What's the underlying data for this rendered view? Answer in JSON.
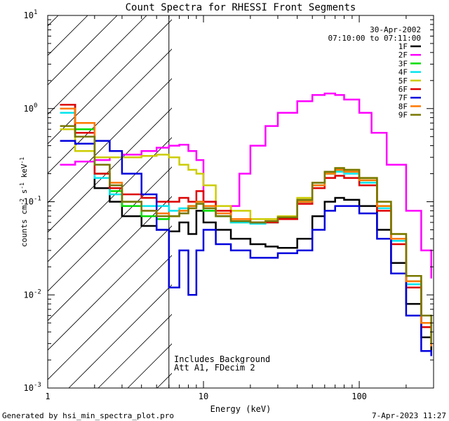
{
  "chart_data": {
    "type": "line",
    "title": "Count Spectra for RHESSI Front Segments",
    "date": "30-Apr-2002",
    "time_range": "07:10:00 to 07:11:00",
    "xlabel": "Energy (keV)",
    "ylabel_parts": [
      "counts cm",
      "-2",
      " s",
      "-1",
      " keV",
      "-1"
    ],
    "xscale": "log",
    "yscale": "log",
    "xlim": [
      1,
      300
    ],
    "ylim": [
      0.001,
      10
    ],
    "x_tick_labels": [
      "1",
      "10",
      "100"
    ],
    "x_tick_values": [
      1,
      10,
      100
    ],
    "y_tick_mantissa": [
      "10",
      "10",
      "10",
      "10",
      "10"
    ],
    "y_tick_exponents": [
      "-3",
      "-2",
      "-1",
      "0",
      "1"
    ],
    "y_tick_values": [
      0.001,
      0.01,
      0.1,
      1,
      10
    ],
    "hatched_region_keV": [
      1,
      6
    ],
    "annotations": [
      "Includes Background",
      "Att A1, FDecim 2"
    ],
    "footer_left": "Generated by hsi_min_spectra_plot.pro",
    "footer_right": "7-Apr-2023 11:27",
    "legend_position": "top-right",
    "series": [
      {
        "name": "1F",
        "color": "#000000",
        "x": [
          1.2,
          1.5,
          2,
          2.5,
          3,
          4,
          5,
          6,
          7,
          8,
          9,
          10,
          12,
          15,
          20,
          25,
          30,
          40,
          50,
          60,
          70,
          80,
          100,
          130,
          160,
          200,
          250,
          290
        ],
        "y": [
          1.1,
          0.5,
          0.14,
          0.1,
          0.07,
          0.055,
          0.05,
          0.048,
          0.06,
          0.045,
          0.08,
          0.06,
          0.05,
          0.04,
          0.035,
          0.033,
          0.032,
          0.04,
          0.07,
          0.1,
          0.11,
          0.105,
          0.09,
          0.05,
          0.022,
          0.008,
          0.0035,
          0.0025
        ]
      },
      {
        "name": "2F",
        "color": "#ff00ff",
        "x": [
          1.2,
          1.5,
          2,
          2.5,
          3,
          4,
          5,
          6,
          7,
          8,
          9,
          10,
          12,
          15,
          17,
          20,
          25,
          30,
          40,
          50,
          60,
          70,
          80,
          100,
          120,
          150,
          200,
          250,
          290
        ],
        "y": [
          0.25,
          0.27,
          0.28,
          0.3,
          0.32,
          0.35,
          0.38,
          0.4,
          0.41,
          0.35,
          0.28,
          0.1,
          0.07,
          0.09,
          0.2,
          0.4,
          0.65,
          0.9,
          1.2,
          1.4,
          1.45,
          1.4,
          1.25,
          0.9,
          0.55,
          0.25,
          0.08,
          0.03,
          0.015
        ]
      },
      {
        "name": "3F",
        "color": "#00dd00",
        "x": [
          1.2,
          1.5,
          2,
          2.5,
          3,
          4,
          5,
          6,
          7,
          8,
          9,
          10,
          12,
          15,
          20,
          25,
          30,
          40,
          50,
          60,
          70,
          80,
          100,
          130,
          160,
          200,
          250,
          290
        ],
        "y": [
          1.0,
          0.6,
          0.2,
          0.13,
          0.09,
          0.07,
          0.065,
          0.07,
          0.08,
          0.09,
          0.1,
          0.08,
          0.07,
          0.06,
          0.06,
          0.06,
          0.065,
          0.1,
          0.15,
          0.2,
          0.22,
          0.21,
          0.17,
          0.09,
          0.04,
          0.014,
          0.005,
          0.003
        ]
      },
      {
        "name": "4F",
        "color": "#00e5ee",
        "x": [
          1.2,
          1.5,
          2,
          2.5,
          3,
          4,
          5,
          6,
          7,
          8,
          9,
          10,
          12,
          15,
          20,
          25,
          30,
          40,
          50,
          60,
          70,
          80,
          100,
          130,
          160,
          200,
          250,
          290
        ],
        "y": [
          0.9,
          0.5,
          0.18,
          0.12,
          0.1,
          0.09,
          0.09,
          0.08,
          0.085,
          0.09,
          0.1,
          0.085,
          0.07,
          0.06,
          0.058,
          0.06,
          0.065,
          0.1,
          0.15,
          0.2,
          0.21,
          0.2,
          0.16,
          0.085,
          0.038,
          0.013,
          0.005,
          0.003
        ]
      },
      {
        "name": "5F",
        "color": "#cccc00",
        "x": [
          1.2,
          1.5,
          2,
          2.5,
          3,
          4,
          5,
          6,
          7,
          8,
          9,
          10,
          12,
          15,
          20,
          25,
          30,
          40,
          50,
          60,
          70,
          80,
          100,
          130,
          160,
          200,
          250,
          290
        ],
        "y": [
          0.6,
          0.35,
          0.3,
          0.3,
          0.3,
          0.31,
          0.32,
          0.3,
          0.25,
          0.22,
          0.2,
          0.15,
          0.09,
          0.08,
          0.065,
          0.065,
          0.07,
          0.11,
          0.16,
          0.21,
          0.23,
          0.22,
          0.18,
          0.1,
          0.045,
          0.016,
          0.006,
          0.0035
        ]
      },
      {
        "name": "6F",
        "color": "#dd0000",
        "x": [
          1.2,
          1.5,
          2,
          2.5,
          3,
          4,
          5,
          6,
          7,
          8,
          9,
          10,
          12,
          15,
          20,
          25,
          30,
          40,
          50,
          60,
          70,
          80,
          100,
          130,
          160,
          200,
          250,
          290
        ],
        "y": [
          1.1,
          0.55,
          0.2,
          0.14,
          0.12,
          0.11,
          0.1,
          0.1,
          0.11,
          0.1,
          0.13,
          0.1,
          0.08,
          0.065,
          0.06,
          0.06,
          0.065,
          0.095,
          0.14,
          0.18,
          0.19,
          0.18,
          0.15,
          0.08,
          0.035,
          0.012,
          0.0045,
          0.003
        ]
      },
      {
        "name": "7F",
        "color": "#0000dd",
        "x": [
          1.2,
          1.5,
          2,
          2.5,
          3,
          4,
          5,
          6,
          7,
          8,
          9,
          10,
          12,
          15,
          20,
          25,
          30,
          40,
          50,
          60,
          70,
          80,
          100,
          130,
          160,
          200,
          250,
          290
        ],
        "y": [
          0.45,
          0.42,
          0.45,
          0.35,
          0.2,
          0.12,
          0.05,
          0.012,
          0.03,
          0.01,
          0.03,
          0.05,
          0.035,
          0.03,
          0.025,
          0.025,
          0.028,
          0.03,
          0.05,
          0.08,
          0.09,
          0.09,
          0.075,
          0.04,
          0.017,
          0.006,
          0.0025,
          0.0022
        ]
      },
      {
        "name": "8F",
        "color": "#ff7700",
        "x": [
          1.2,
          1.5,
          2,
          2.5,
          3,
          4,
          5,
          6,
          7,
          8,
          9,
          10,
          12,
          15,
          20,
          25,
          30,
          40,
          50,
          60,
          70,
          80,
          100,
          130,
          160,
          200,
          250,
          290
        ],
        "y": [
          1.0,
          0.7,
          0.25,
          0.16,
          0.1,
          0.08,
          0.075,
          0.07,
          0.08,
          0.09,
          0.1,
          0.09,
          0.075,
          0.065,
          0.06,
          0.062,
          0.068,
          0.1,
          0.15,
          0.2,
          0.22,
          0.21,
          0.17,
          0.09,
          0.04,
          0.014,
          0.005,
          0.0028
        ]
      },
      {
        "name": "9F",
        "color": "#777700",
        "x": [
          1.2,
          1.5,
          2,
          2.5,
          3,
          4,
          5,
          6,
          7,
          8,
          9,
          10,
          12,
          15,
          20,
          25,
          30,
          40,
          50,
          60,
          70,
          80,
          100,
          130,
          160,
          200,
          250,
          290
        ],
        "y": [
          0.65,
          0.5,
          0.25,
          0.15,
          0.1,
          0.08,
          0.07,
          0.07,
          0.075,
          0.085,
          0.095,
          0.085,
          0.07,
          0.062,
          0.06,
          0.062,
          0.068,
          0.105,
          0.16,
          0.21,
          0.23,
          0.22,
          0.18,
          0.1,
          0.045,
          0.016,
          0.006,
          0.003
        ]
      }
    ]
  }
}
